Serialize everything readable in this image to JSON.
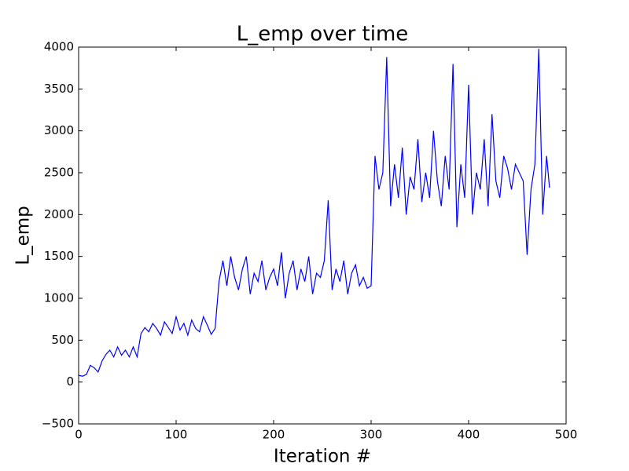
{
  "chart_data": {
    "type": "line",
    "title": "L_emp over time",
    "xlabel": "Iteration #",
    "ylabel": "L_emp",
    "x": [
      0,
      4,
      8,
      12,
      16,
      20,
      24,
      28,
      32,
      36,
      40,
      44,
      48,
      52,
      56,
      60,
      64,
      68,
      72,
      76,
      80,
      84,
      88,
      92,
      96,
      100,
      104,
      108,
      112,
      116,
      120,
      124,
      128,
      132,
      136,
      140,
      144,
      148,
      152,
      156,
      160,
      164,
      168,
      172,
      176,
      180,
      184,
      188,
      192,
      196,
      200,
      204,
      208,
      212,
      216,
      220,
      224,
      228,
      232,
      236,
      240,
      244,
      248,
      252,
      256,
      260,
      264,
      268,
      272,
      276,
      280,
      284,
      288,
      292,
      296,
      300,
      304,
      308,
      312,
      316,
      320,
      324,
      328,
      332,
      336,
      340,
      344,
      348,
      352,
      356,
      360,
      364,
      368,
      372,
      376,
      380,
      384,
      388,
      392,
      396,
      400,
      404,
      408,
      412,
      416,
      420,
      424,
      428,
      432,
      436,
      440,
      444,
      448,
      452,
      456,
      460,
      464,
      468,
      472,
      476,
      480,
      483
    ],
    "series": [
      {
        "name": "L_emp",
        "color": "#0000ff",
        "values": [
          80,
          70,
          90,
          200,
          170,
          120,
          250,
          330,
          380,
          300,
          420,
          320,
          380,
          300,
          420,
          300,
          580,
          650,
          600,
          700,
          640,
          560,
          720,
          650,
          580,
          780,
          620,
          700,
          560,
          740,
          640,
          600,
          780,
          680,
          570,
          640,
          1200,
          1450,
          1150,
          1500,
          1250,
          1100,
          1350,
          1500,
          1050,
          1300,
          1200,
          1450,
          1100,
          1250,
          1350,
          1150,
          1550,
          1000,
          1300,
          1450,
          1100,
          1350,
          1200,
          1500,
          1050,
          1300,
          1250,
          1450,
          2170,
          1100,
          1350,
          1200,
          1450,
          1050,
          1300,
          1400,
          1150,
          1250,
          1120,
          1150,
          2700,
          2300,
          2500,
          3880,
          2100,
          2600,
          2200,
          2800,
          2000,
          2450,
          2300,
          2900,
          2150,
          2500,
          2200,
          3000,
          2400,
          2100,
          2700,
          2300,
          3800,
          1850,
          2600,
          2200,
          3550,
          2000,
          2500,
          2300,
          2900,
          2100,
          3200,
          2400,
          2200,
          2700,
          2550,
          2300,
          2600,
          2500,
          2400,
          1520,
          2300,
          2600,
          3980,
          2000,
          2700,
          2320
        ]
      }
    ],
    "xlim": [
      0,
      500
    ],
    "xticks": [
      0,
      100,
      200,
      300,
      400,
      500
    ],
    "ylim": [
      -500,
      4000
    ],
    "yticks": [
      {
        "value": -500,
        "label": "−500"
      },
      0,
      500,
      1000,
      1500,
      2000,
      2500,
      3000,
      3500,
      4000
    ]
  }
}
